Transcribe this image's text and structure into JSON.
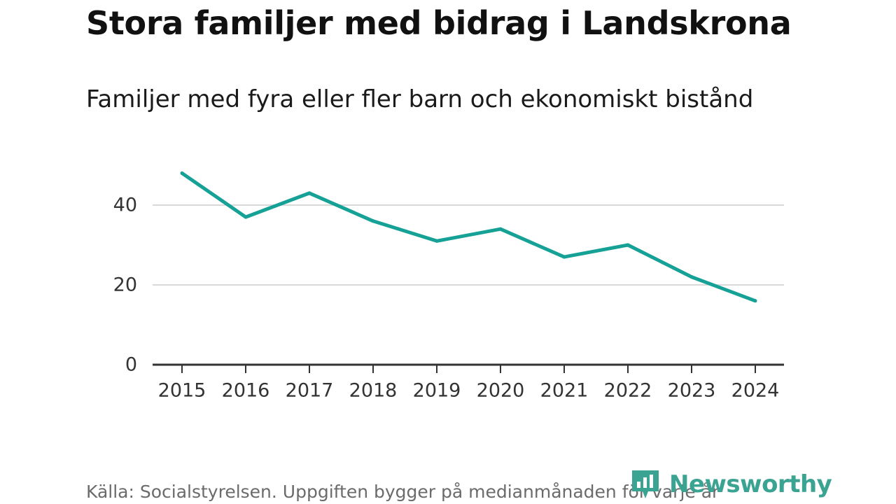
{
  "header": {
    "title": "Stora familjer med bidrag i Landskrona",
    "subtitle": "Familjer med fyra eller fler barn och ekonomiskt bistånd"
  },
  "footer": {
    "source": "Källa: Socialstyrelsen. Uppgiften bygger på medianmånaden för varje år",
    "logo_text": "Newsworthy"
  },
  "colors": {
    "line": "#15a196",
    "grid": "#d9d9d9",
    "axis": "#333333",
    "logo": "#3aa392"
  },
  "chart_data": {
    "type": "line",
    "title": "Stora familjer med bidrag i Landskrona",
    "subtitle": "Familjer med fyra eller fler barn och ekonomiskt bistånd",
    "xlabel": "",
    "ylabel": "",
    "x": [
      "2015",
      "2016",
      "2017",
      "2018",
      "2019",
      "2020",
      "2021",
      "2022",
      "2023",
      "2024"
    ],
    "series": [
      {
        "name": "Familjer med fyra eller fler barn och ekonomiskt bistånd",
        "values": [
          48,
          37,
          43,
          36,
          31,
          34,
          27,
          30,
          22,
          16
        ]
      }
    ],
    "yticks": [
      "0",
      "20",
      "40"
    ],
    "ylim": [
      0,
      48
    ],
    "grid": true
  }
}
